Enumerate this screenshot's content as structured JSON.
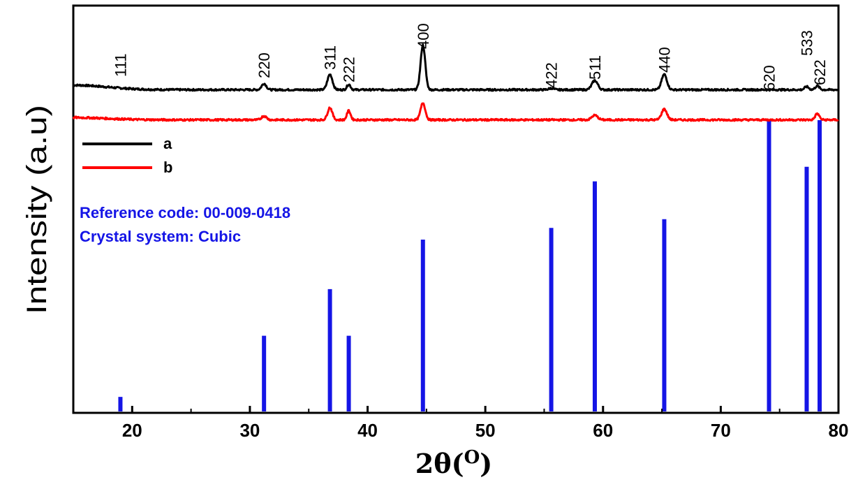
{
  "chart_data": {
    "type": "line",
    "xlabel": "2θ(O)",
    "xlabel_main": "2θ(",
    "xlabel_sup": "O",
    "xlabel_close": ")",
    "ylabel": "Intensity (a.u)",
    "xlim": [
      15,
      80
    ],
    "xticks": [
      20,
      30,
      40,
      50,
      60,
      70,
      80
    ],
    "xtick_labels": [
      "20",
      "30",
      "40",
      "50",
      "60",
      "70",
      "80"
    ],
    "grid": false,
    "legend_position": "upper-left",
    "series": [
      {
        "name": "a",
        "color": "#000000",
        "baseline": 0.05,
        "noise": 0.012,
        "peaks": [
          {
            "x": 31.2,
            "height": 0.08,
            "width": 0.28
          },
          {
            "x": 36.8,
            "height": 0.2,
            "width": 0.3
          },
          {
            "x": 38.4,
            "height": 0.07,
            "width": 0.22
          },
          {
            "x": 44.7,
            "height": 0.58,
            "width": 0.28
          },
          {
            "x": 55.6,
            "height": 0.02,
            "width": 0.3
          },
          {
            "x": 59.3,
            "height": 0.12,
            "width": 0.35
          },
          {
            "x": 65.2,
            "height": 0.2,
            "width": 0.32
          },
          {
            "x": 77.3,
            "height": 0.04,
            "width": 0.25
          },
          {
            "x": 78.2,
            "height": 0.05,
            "width": 0.25
          }
        ]
      },
      {
        "name": "b",
        "color": "#ff0000",
        "baseline": 0.04,
        "noise": 0.012,
        "peaks": [
          {
            "x": 31.2,
            "height": 0.05,
            "width": 0.3
          },
          {
            "x": 36.8,
            "height": 0.16,
            "width": 0.28
          },
          {
            "x": 38.4,
            "height": 0.12,
            "width": 0.22
          },
          {
            "x": 44.7,
            "height": 0.22,
            "width": 0.28
          },
          {
            "x": 59.3,
            "height": 0.06,
            "width": 0.35
          },
          {
            "x": 65.2,
            "height": 0.14,
            "width": 0.32
          },
          {
            "x": 78.2,
            "height": 0.08,
            "width": 0.25
          }
        ]
      }
    ],
    "peak_labels": [
      {
        "text": "111",
        "x": 19.0
      },
      {
        "text": "220",
        "x": 31.2
      },
      {
        "text": "311",
        "x": 36.8
      },
      {
        "text": "222",
        "x": 38.4
      },
      {
        "text": "400",
        "x": 44.7
      },
      {
        "text": "422",
        "x": 55.6
      },
      {
        "text": "511",
        "x": 59.3
      },
      {
        "text": "440",
        "x": 65.2
      },
      {
        "text": "620",
        "x": 74.1
      },
      {
        "text": "533",
        "x": 77.3
      },
      {
        "text": "622",
        "x": 78.4
      }
    ],
    "reference": {
      "code_label": "Reference code: 00-009-0418",
      "system_label": "Crystal system:  Cubic",
      "color": "#1515e6",
      "lines": [
        {
          "x": 19.0,
          "intensity": 5
        },
        {
          "x": 31.2,
          "intensity": 26
        },
        {
          "x": 36.8,
          "intensity": 42
        },
        {
          "x": 38.4,
          "intensity": 26
        },
        {
          "x": 44.7,
          "intensity": 59
        },
        {
          "x": 55.6,
          "intensity": 63
        },
        {
          "x": 59.3,
          "intensity": 79
        },
        {
          "x": 65.2,
          "intensity": 66
        },
        {
          "x": 74.1,
          "intensity": 100
        },
        {
          "x": 77.3,
          "intensity": 84
        },
        {
          "x": 78.4,
          "intensity": 100
        }
      ]
    }
  }
}
